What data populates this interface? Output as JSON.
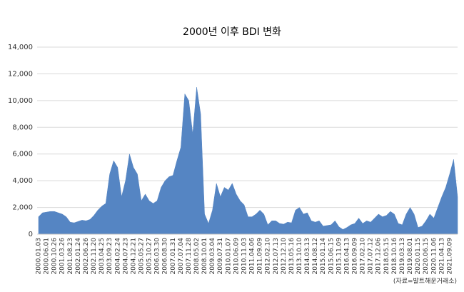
{
  "chart_data": {
    "type": "area",
    "title": "2000년 이후 BDI 변화",
    "source": "(자료=발트해운거래소)",
    "categories": [
      "2000.01.03",
      null,
      "2000.06.01",
      null,
      "2000.10.26",
      null,
      "2001.03.26",
      null,
      "2001.08.23",
      null,
      "2002.01.24",
      null,
      "2002.06.26",
      null,
      "2002.11.20",
      null,
      "2003.04.25",
      null,
      "2003.09.23",
      null,
      "2004.02.24",
      null,
      "2004.07.23",
      null,
      "2004.12.21",
      null,
      "2005.05.27",
      null,
      "2005.10.27",
      null,
      "2006.03.30",
      null,
      "2006.08.30",
      null,
      "2007.01.31",
      null,
      "2007.07.04",
      null,
      "2007.11.28",
      null,
      "2008.05.02",
      null,
      "2008.10.01",
      null,
      "2009.03.04",
      null,
      "2009.07.31",
      null,
      "2010.01.07",
      null,
      "2010.06.09",
      null,
      "2010.11.03",
      null,
      "2011.04.06",
      null,
      "2011.09.09",
      null,
      "2012.02.10",
      null,
      "2012.07.13",
      null,
      "2012.12.10",
      null,
      "2013.05.16",
      null,
      "2013.10.10",
      null,
      "2014.03.13",
      null,
      "2014.08.12",
      null,
      "2015.01.14",
      null,
      "2015.06.15",
      null,
      "2015.11.09",
      null,
      "2016.04.13",
      null,
      "2016.09.09",
      null,
      "2017.02.10",
      null,
      "2017.07.12",
      null,
      "2017.12.06",
      null,
      "2018.05.15",
      null,
      "2018.10.16",
      null,
      "2019.03.13",
      null,
      "2019.08.01",
      null,
      "2020.01.15",
      null,
      "2020.06.15",
      null,
      "2020.11.06",
      null,
      "2021.04.13",
      null,
      "2021.09.09",
      null,
      null
    ],
    "values": [
      1300,
      1600,
      1650,
      1700,
      1700,
      1600,
      1500,
      1300,
      900,
      850,
      950,
      1050,
      1000,
      1100,
      1400,
      1800,
      2100,
      2300,
      4500,
      5500,
      5000,
      2800,
      4000,
      6000,
      5000,
      4500,
      2500,
      3000,
      2500,
      2300,
      2500,
      3500,
      4000,
      4300,
      4400,
      5500,
      6500,
      10500,
      10000,
      7500,
      11000,
      9000,
      1500,
      800,
      1800,
      3800,
      2800,
      3500,
      3300,
      3800,
      3000,
      2500,
      2200,
      1300,
      1300,
      1500,
      1800,
      1500,
      700,
      1000,
      1000,
      800,
      750,
      900,
      850,
      1800,
      2000,
      1500,
      1600,
      1000,
      900,
      1000,
      600,
      650,
      700,
      1000,
      550,
      350,
      500,
      700,
      800,
      1200,
      800,
      1000,
      900,
      1200,
      1500,
      1300,
      1400,
      1700,
      1500,
      800,
      700,
      1500,
      2000,
      1500,
      500,
      600,
      1000,
      1500,
      1200,
      2000,
      2800,
      3500,
      4500,
      5600,
      2800
    ],
    "color": "#5585c3",
    "ylim": [
      0,
      14000
    ],
    "yticks": [
      0,
      {
        "value": 2000,
        "label": "2,000"
      },
      {
        "value": 4000,
        "label": "4,000"
      },
      {
        "value": 6000,
        "label": "6,000"
      },
      {
        "value": 8000,
        "label": "8,000"
      },
      {
        "value": 10000,
        "label": "10,000"
      },
      {
        "value": 12000,
        "label": "12,000"
      },
      {
        "value": 14000,
        "label": "14,000"
      }
    ],
    "grid": true
  }
}
